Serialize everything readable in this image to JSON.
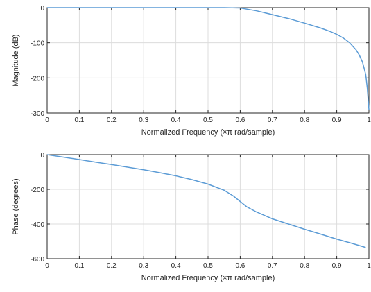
{
  "chart_data": [
    {
      "type": "line",
      "title": "",
      "xlabel": "Normalized Frequency  (×π rad/sample)",
      "ylabel": "Magnitude (dB)",
      "xlim": [
        0,
        1
      ],
      "ylim": [
        -300,
        0
      ],
      "x_ticks": [
        "0",
        "0.1",
        "0.2",
        "0.3",
        "0.4",
        "0.5",
        "0.6",
        "0.7",
        "0.8",
        "0.9",
        "1"
      ],
      "y_ticks": [
        "0",
        "-100",
        "-200",
        "-300"
      ],
      "grid": true,
      "color": "#5b9bd5",
      "series": [
        {
          "x": [
            0,
            0.05,
            0.1,
            0.15,
            0.2,
            0.25,
            0.3,
            0.35,
            0.4,
            0.45,
            0.5,
            0.55,
            0.6,
            0.65,
            0.7,
            0.75,
            0.8,
            0.85,
            0.88,
            0.9,
            0.92,
            0.94,
            0.96,
            0.97,
            0.98,
            0.99,
            0.995,
            1.0
          ],
          "y": [
            0,
            0,
            0,
            0,
            0,
            0,
            0,
            0,
            0,
            0,
            0,
            0,
            -1,
            -9,
            -20,
            -31,
            -44,
            -58,
            -68,
            -76,
            -86,
            -100,
            -120,
            -135,
            -155,
            -190,
            -230,
            -290
          ]
        }
      ]
    },
    {
      "type": "line",
      "title": "",
      "xlabel": "Normalized Frequency  (×π rad/sample)",
      "ylabel": "Phase (degrees)",
      "xlim": [
        0,
        1
      ],
      "ylim": [
        -600,
        0
      ],
      "x_ticks": [
        "0",
        "0.1",
        "0.2",
        "0.3",
        "0.4",
        "0.5",
        "0.6",
        "0.7",
        "0.8",
        "0.9",
        "1"
      ],
      "y_ticks": [
        "0",
        "-200",
        "-400",
        "-600"
      ],
      "grid": true,
      "color": "#5b9bd5",
      "series": [
        {
          "x": [
            0,
            0.05,
            0.1,
            0.15,
            0.2,
            0.25,
            0.3,
            0.35,
            0.4,
            0.45,
            0.5,
            0.55,
            0.58,
            0.6,
            0.62,
            0.65,
            0.7,
            0.75,
            0.8,
            0.85,
            0.9,
            0.95,
            0.99
          ],
          "y": [
            0,
            -14,
            -28,
            -43,
            -57,
            -72,
            -87,
            -104,
            -122,
            -144,
            -170,
            -205,
            -240,
            -270,
            -300,
            -330,
            -370,
            -400,
            -430,
            -458,
            -487,
            -513,
            -535
          ]
        }
      ]
    }
  ]
}
